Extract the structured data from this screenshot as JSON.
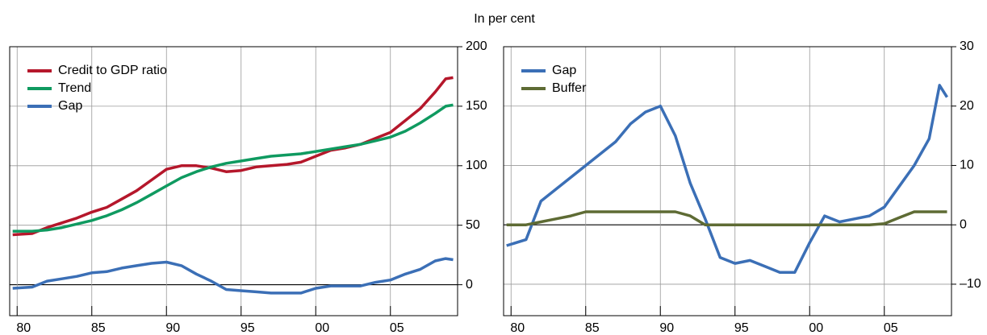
{
  "chart_data": [
    {
      "type": "line",
      "ylabel": "In per cent",
      "legend": "upper left",
      "grid": true,
      "x": [
        1979.7,
        1981,
        1982,
        1983,
        1984,
        1985,
        1986,
        1987,
        1988,
        1989,
        1990,
        1991,
        1992,
        1993,
        1994,
        1995,
        1996,
        1997,
        1998,
        1999,
        2000,
        2001,
        2002,
        2003,
        2004,
        2005,
        2006,
        2007,
        2008,
        2008.7,
        2009.2
      ],
      "xlim": [
        1979.5,
        2009.5
      ],
      "xticks": [
        {
          "value": 1980,
          "label": "80"
        },
        {
          "value": 1985,
          "label": "85"
        },
        {
          "value": 1990,
          "label": "90"
        },
        {
          "value": 1995,
          "label": "95"
        },
        {
          "value": 2000,
          "label": "00"
        },
        {
          "value": 2005,
          "label": "05"
        }
      ],
      "ylim": [
        -26,
        200
      ],
      "yticks": [
        0,
        50,
        100,
        150,
        200
      ],
      "series": [
        {
          "name": "Credit to GDP ratio",
          "color": "#b5172b",
          "values": [
            42,
            43,
            48,
            52,
            56,
            61,
            65,
            72,
            79,
            88,
            97,
            100,
            100,
            98,
            95,
            96,
            99,
            100,
            101,
            103,
            108,
            113,
            115,
            118,
            123,
            128,
            138,
            148,
            162,
            173,
            174
          ]
        },
        {
          "name": "Trend",
          "color": "#0f9a60",
          "values": [
            45,
            45,
            46,
            48,
            51,
            54,
            58,
            63,
            69,
            76,
            83,
            90,
            95,
            99,
            102,
            104,
            106,
            108,
            109,
            110,
            112,
            114,
            116,
            118,
            121,
            124,
            129,
            136,
            144,
            150,
            151
          ]
        },
        {
          "name": "Gap",
          "color": "#3b6fb6",
          "values": [
            -3,
            -2,
            3,
            5,
            7,
            10,
            11,
            14,
            16,
            18,
            19,
            16,
            9,
            3,
            -4,
            -5,
            -6,
            -7,
            -7,
            -7,
            -3,
            -1,
            -1,
            -1,
            2,
            4,
            9,
            13,
            20,
            22,
            21
          ]
        }
      ]
    },
    {
      "type": "line",
      "legend": "upper left",
      "grid": true,
      "x": [
        1979.7,
        1981,
        1982,
        1983,
        1984,
        1985,
        1986,
        1987,
        1988,
        1989,
        1990,
        1991,
        1992,
        1993,
        1994,
        1995,
        1996,
        1997,
        1998,
        1999,
        2000,
        2001,
        2002,
        2003,
        2004,
        2005,
        2006,
        2007,
        2008,
        2008.7,
        2009.2
      ],
      "xlim": [
        1979.5,
        2009.5
      ],
      "xticks": [
        {
          "value": 1980,
          "label": "80"
        },
        {
          "value": 1985,
          "label": "85"
        },
        {
          "value": 1990,
          "label": "90"
        },
        {
          "value": 1995,
          "label": "95"
        },
        {
          "value": 2000,
          "label": "00"
        },
        {
          "value": 2005,
          "label": "05"
        }
      ],
      "ylim": [
        -15.3,
        30
      ],
      "yticks": [
        {
          "value": -10,
          "label": "–10"
        },
        0,
        10,
        20,
        30
      ],
      "series": [
        {
          "name": "Gap",
          "color": "#3b6fb6",
          "values": [
            -3.5,
            -2.5,
            4,
            6,
            8,
            10,
            12,
            14,
            17,
            19,
            20,
            15,
            7,
            1,
            -5.5,
            -6.5,
            -6,
            -7,
            -8,
            -8,
            -3,
            1.5,
            0.5,
            1,
            1.5,
            3,
            6.5,
            10,
            14.5,
            23.5,
            21.5
          ]
        },
        {
          "name": "Buffer",
          "color": "#5e6b34",
          "values": [
            0,
            0,
            0.5,
            1,
            1.5,
            2.2,
            2.2,
            2.2,
            2.2,
            2.2,
            2.2,
            2.2,
            1.5,
            0,
            0,
            0,
            0,
            0,
            0,
            0,
            0,
            0,
            0,
            0,
            0,
            0.2,
            1.2,
            2.2,
            2.2,
            2.2,
            2.2
          ]
        }
      ]
    }
  ]
}
